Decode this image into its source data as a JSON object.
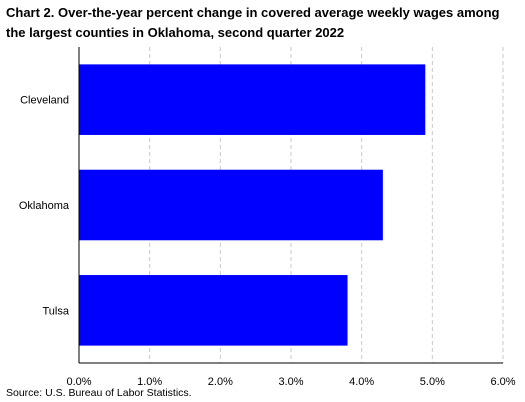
{
  "chart_data": {
    "type": "bar",
    "orientation": "horizontal",
    "title": "Chart 2. Over-the-year percent change in covered average weekly wages among the largest counties in Oklahoma, second quarter 2022",
    "categories": [
      "Cleveland",
      "Oklahoma",
      "Tulsa"
    ],
    "values": [
      4.9,
      4.3,
      3.8
    ],
    "xlim": [
      0.0,
      6.0
    ],
    "xticks": [
      "0.0%",
      "1.0%",
      "2.0%",
      "3.0%",
      "4.0%",
      "5.0%",
      "6.0%"
    ],
    "xlabel": "",
    "ylabel": "",
    "grid": "vertical dashed",
    "legend": "none",
    "bar_color": "#0000ff"
  },
  "source": "Source: U.S. Bureau of Labor Statistics."
}
